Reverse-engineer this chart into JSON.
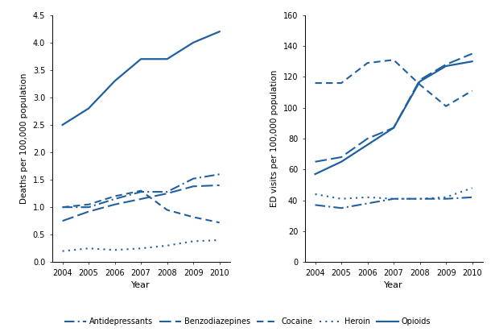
{
  "years": [
    2004,
    2005,
    2006,
    2007,
    2008,
    2009,
    2010
  ],
  "deaths": {
    "Opioids": [
      2.5,
      2.8,
      3.3,
      3.7,
      3.7,
      4.0,
      4.2
    ],
    "Benzodiazepines": [
      0.75,
      0.92,
      1.05,
      1.15,
      1.25,
      1.38,
      1.4
    ],
    "Antidepressants": [
      1.0,
      1.0,
      1.15,
      1.28,
      1.28,
      1.52,
      1.6
    ],
    "Cocaine": [
      1.0,
      1.05,
      1.2,
      1.3,
      0.95,
      0.82,
      0.72
    ],
    "Heroin": [
      0.2,
      0.25,
      0.22,
      0.25,
      0.3,
      0.38,
      0.4
    ]
  },
  "ed_visits": {
    "Opioids": [
      57,
      65,
      76,
      87,
      117,
      127,
      130
    ],
    "Benzodiazepines": [
      65,
      68,
      80,
      87,
      118,
      128,
      135
    ],
    "Cocaine": [
      116,
      116,
      129,
      131,
      115,
      101,
      111
    ],
    "Antidepressants": [
      37,
      35,
      38,
      41,
      41,
      41,
      42
    ],
    "Heroin": [
      44,
      41,
      42,
      41,
      41,
      42,
      48
    ]
  },
  "color": "#2060a0",
  "ylim_deaths": [
    0.0,
    4.5
  ],
  "ylim_ed": [
    0,
    160
  ],
  "yticks_deaths": [
    0.0,
    0.5,
    1.0,
    1.5,
    2.0,
    2.5,
    3.0,
    3.5,
    4.0,
    4.5
  ],
  "yticks_ed": [
    0,
    20,
    40,
    60,
    80,
    100,
    120,
    140,
    160
  ],
  "ylabel_deaths": "Deaths per 100,000 population",
  "ylabel_ed": "ED visits per 100,000 population",
  "xlabel": "Year",
  "legend_labels": [
    "Antidepressants",
    "Benzodiazepines",
    "Cocaine",
    "Heroin",
    "Opioids"
  ]
}
